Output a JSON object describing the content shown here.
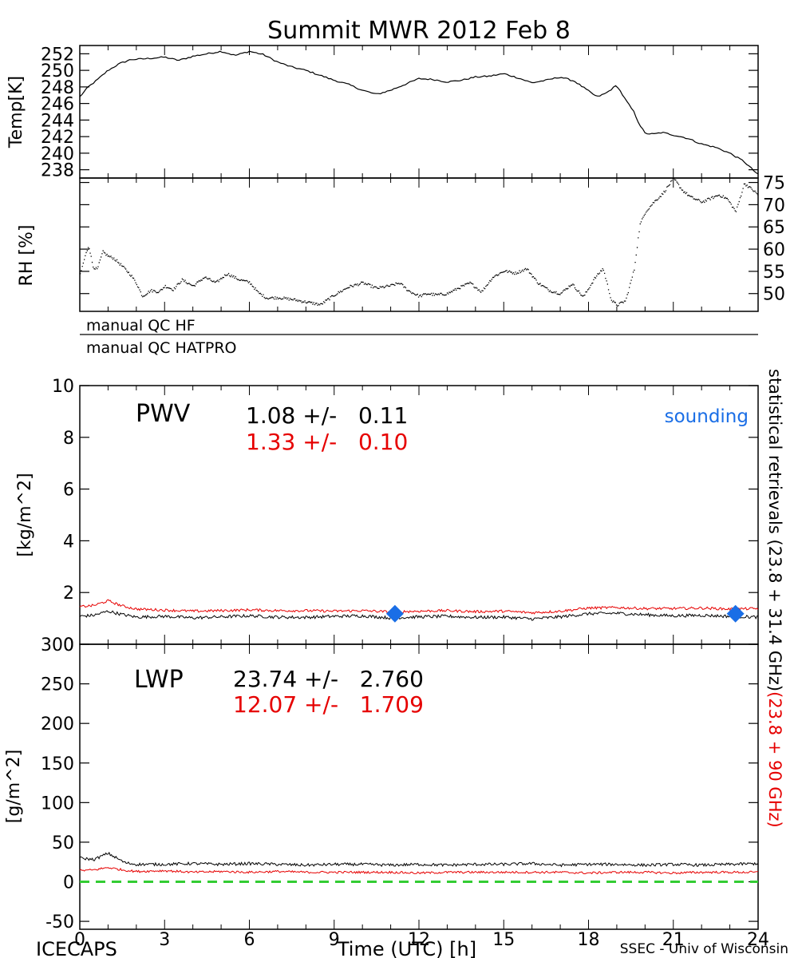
{
  "title": "Summit MWR 2012 Feb  8",
  "footer": {
    "left": "ICECAPS",
    "xlabel": "Time (UTC) [h]",
    "right": "SSEC - Univ of Wisconsin"
  },
  "side_label": {
    "black": "statistical retrievals (23.8 + 31.4 GHz)",
    "red": "(23.8 + 90 GHz)"
  },
  "colors": {
    "red": "#e60000",
    "green": "#33cc33",
    "blue": "#1a6ee6",
    "black": "#000000"
  },
  "qc": {
    "hf": "manual QC HF",
    "hatpro": "manual QC HATPRO"
  },
  "chart_data": [
    {
      "id": "temp",
      "type": "line",
      "ylabel": "Temp[K]",
      "yticks": [
        238,
        240,
        242,
        244,
        246,
        248,
        250,
        252
      ],
      "ylim": [
        237,
        253
      ],
      "xlim": [
        0,
        24
      ],
      "series": [
        {
          "color": "black",
          "x": [
            0,
            0.3,
            0.6,
            1,
            1.4,
            1.8,
            2.3,
            3,
            3.5,
            4,
            4.5,
            5,
            5.5,
            6,
            6.5,
            7,
            7.5,
            8,
            8.5,
            9,
            9.5,
            10,
            10.5,
            11,
            11.5,
            12,
            12.5,
            13,
            13.5,
            14,
            14.5,
            15,
            15.5,
            16,
            16.5,
            17,
            17.5,
            18,
            18.3,
            18.6,
            19,
            19.3,
            19.6,
            19.8,
            20,
            20.3,
            20.6,
            21,
            21.5,
            22,
            22.5,
            23,
            23.5,
            24
          ],
          "y": [
            246.8,
            248,
            248.8,
            250,
            250.8,
            251.3,
            251.4,
            251.6,
            251.2,
            251.7,
            252,
            252.3,
            251.8,
            252.3,
            251.9,
            251,
            250.4,
            250,
            249.4,
            248.8,
            248.3,
            247.6,
            247.1,
            247.6,
            248.3,
            249,
            248.9,
            248.6,
            248.8,
            249.2,
            249.3,
            249.6,
            249.1,
            248.5,
            248.8,
            249.2,
            248.7,
            247.5,
            246.8,
            247.2,
            248.2,
            246.5,
            245,
            243.5,
            242.4,
            242.3,
            242.5,
            242.2,
            241.8,
            241.1,
            240.7,
            240,
            239,
            237.4
          ]
        }
      ]
    },
    {
      "id": "rh",
      "type": "scatter",
      "ylabel": "RH [%]",
      "yticks": [
        50,
        55,
        60,
        65,
        70,
        75
      ],
      "ylim": [
        46,
        76
      ],
      "xlim": [
        0,
        24
      ],
      "series": [
        {
          "color": "black",
          "x": [
            0,
            0.15,
            0.3,
            0.45,
            0.6,
            0.8,
            1,
            1.2,
            1.5,
            1.8,
            2,
            2.2,
            2.5,
            2.8,
            3,
            3.3,
            3.6,
            4,
            4.4,
            4.8,
            5.2,
            5.6,
            6,
            6.3,
            6.6,
            7,
            7.5,
            8,
            8.5,
            9,
            9.5,
            10,
            10.5,
            11,
            11.3,
            11.6,
            12,
            12.3,
            12.6,
            13,
            13.4,
            13.8,
            14.2,
            14.6,
            15,
            15.4,
            15.8,
            16.2,
            16.6,
            17,
            17.4,
            17.8,
            18.2,
            18.5,
            18.8,
            19,
            19.3,
            19.6,
            19.8,
            20,
            20.3,
            20.6,
            21,
            21.3,
            21.6,
            22,
            22.3,
            22.6,
            22.9,
            23.2,
            23.5,
            23.8,
            24
          ],
          "y": [
            54.5,
            58,
            61,
            56.2,
            55.5,
            59.5,
            58.5,
            58,
            56.2,
            54.2,
            52.3,
            49.5,
            50.8,
            50.5,
            51.8,
            51,
            53.2,
            51.8,
            53.8,
            52.5,
            54.6,
            53.3,
            52.6,
            50.3,
            49.1,
            49.2,
            48.8,
            48.2,
            47.6,
            49.8,
            51.6,
            52.5,
            51.3,
            51.9,
            52.5,
            50.8,
            49.5,
            50.1,
            49.8,
            50.1,
            51.4,
            52.5,
            50.5,
            53.8,
            55.2,
            54.7,
            55.7,
            52.5,
            50.8,
            50.1,
            52.3,
            49.3,
            53.5,
            55.8,
            48.5,
            47.5,
            48.5,
            55.5,
            65.5,
            68.5,
            70.7,
            72.5,
            76,
            73.4,
            71.8,
            70.7,
            71.5,
            72.3,
            71.4,
            68.5,
            74.9,
            73.4,
            72.2
          ]
        }
      ]
    },
    {
      "id": "pwv",
      "type": "line",
      "label": "PWV",
      "ylabel": "[kg/m^2]",
      "yticks": [
        0,
        2,
        4,
        6,
        8,
        10
      ],
      "ylim": [
        0,
        10
      ],
      "xlim": [
        0,
        24
      ],
      "stats": [
        {
          "color": "black",
          "text": "1.08 +/-   0.11"
        },
        {
          "color": "red",
          "text": "1.33 +/-   0.10"
        }
      ],
      "legend": {
        "text": "sounding",
        "color": "blue",
        "placement": "top-right"
      },
      "series": [
        {
          "color": "black",
          "x": [
            0,
            0.5,
            1,
            1.5,
            2,
            3,
            4,
            5,
            6,
            7,
            8,
            9,
            10,
            11,
            12,
            13,
            14,
            15,
            16,
            17,
            18,
            19,
            20,
            21,
            22,
            23,
            24
          ],
          "y": [
            1.08,
            1.12,
            1.28,
            1.15,
            1.05,
            1.08,
            1.02,
            1.06,
            1.1,
            1.05,
            1.04,
            1.08,
            1.1,
            1.02,
            1.06,
            1.08,
            1.04,
            1.05,
            0.98,
            1.06,
            1.18,
            1.2,
            1.14,
            1.1,
            1.12,
            1.08,
            1.05
          ],
          "noise": 0.06
        },
        {
          "color": "red",
          "x": [
            0,
            0.5,
            1,
            1.5,
            2,
            3,
            4,
            5,
            6,
            7,
            8,
            9,
            10,
            11,
            12,
            13,
            14,
            15,
            16,
            17,
            18,
            19,
            20,
            21,
            22,
            23,
            24
          ],
          "y": [
            1.45,
            1.5,
            1.68,
            1.48,
            1.36,
            1.32,
            1.28,
            1.3,
            1.33,
            1.3,
            1.3,
            1.28,
            1.3,
            1.25,
            1.28,
            1.3,
            1.26,
            1.28,
            1.22,
            1.28,
            1.4,
            1.42,
            1.38,
            1.38,
            1.4,
            1.36,
            1.38
          ],
          "noise": 0.05
        }
      ],
      "points": [
        {
          "x": 11.15,
          "y": 1.18,
          "color": "blue"
        },
        {
          "x": 23.2,
          "y": 1.18,
          "color": "blue"
        }
      ]
    },
    {
      "id": "lwp",
      "type": "line",
      "label": "LWP",
      "ylabel": "[g/m^2]",
      "yticks": [
        -50,
        0,
        50,
        100,
        150,
        200,
        250,
        300
      ],
      "ylim": [
        -60,
        300
      ],
      "xlim": [
        0,
        24
      ],
      "stats": [
        {
          "color": "black",
          "text": "23.74 +/-   2.760"
        },
        {
          "color": "red",
          "text": "12.07 +/-   1.709"
        }
      ],
      "series": [
        {
          "color": "black",
          "x": [
            0,
            0.5,
            1,
            1.3,
            1.6,
            2,
            3,
            4,
            5,
            6,
            7,
            8,
            9,
            10,
            11,
            12,
            13,
            14,
            15,
            16,
            17,
            18,
            19,
            20,
            21,
            22,
            23,
            24
          ],
          "y": [
            30,
            28,
            36,
            30,
            24,
            22,
            22,
            23,
            22,
            23,
            22,
            21,
            22,
            22,
            21,
            22,
            21,
            22,
            22,
            23,
            21,
            22,
            22,
            21,
            22,
            21,
            22,
            23
          ],
          "noise": 1.8
        },
        {
          "color": "red",
          "x": [
            0,
            0.5,
            1,
            1.5,
            2,
            3,
            4,
            5,
            6,
            7,
            8,
            9,
            10,
            11,
            12,
            13,
            14,
            15,
            16,
            17,
            18,
            19,
            20,
            21,
            22,
            23,
            24
          ],
          "y": [
            14,
            15,
            18,
            15,
            13,
            14,
            12,
            13,
            12,
            13,
            12,
            12,
            12,
            12,
            11,
            12,
            12,
            12,
            12,
            12,
            11,
            12,
            12,
            11,
            12,
            12,
            12
          ],
          "noise": 1.4
        }
      ],
      "reference_line": {
        "y": 0,
        "color": "green",
        "style": "dashed"
      }
    }
  ],
  "xaxis": {
    "ticks": [
      0,
      3,
      6,
      9,
      12,
      15,
      18,
      21,
      24
    ],
    "minor_step": 1
  }
}
